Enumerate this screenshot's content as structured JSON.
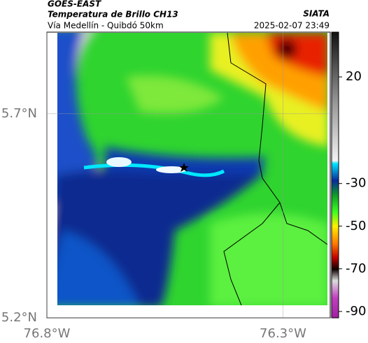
{
  "header": {
    "satellite": "GOES-EAST",
    "product": "Temperatura de Brillo CH13",
    "route": "Vía Medellín - Quibdó 50km",
    "source": "SIATA",
    "timestamp": "2025-02-07 23:49"
  },
  "map": {
    "xlim": [
      -76.8,
      -76.2
    ],
    "ylim": [
      5.2,
      5.9
    ],
    "xticks": [
      {
        "value": -76.8,
        "label": "76.8°W"
      },
      {
        "value": -76.3,
        "label": "76.3°W"
      }
    ],
    "yticks": [
      {
        "value": 5.7,
        "label": "5.7°N"
      },
      {
        "value": 5.2,
        "label": "5.2°N"
      }
    ]
  },
  "colorbar": {
    "clim": [
      -93,
      41
    ],
    "ticks": [
      20,
      -30,
      -50,
      -70,
      -90
    ]
  }
}
